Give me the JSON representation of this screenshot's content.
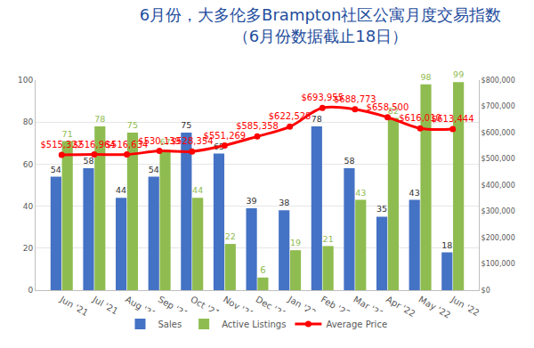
{
  "chart_data": {
    "type": "bar",
    "title": "6月份，大多伦多Brampton社区公寓月度交易指数",
    "subtitle": "（6月份数据截止18日）",
    "categories": [
      "Jun '21",
      "Jul '21",
      "Aug '21",
      "Sep '21",
      "Oct '21",
      "Nov '21",
      "Dec '21",
      "Jan '22",
      "Feb '22",
      "Mar '22",
      "Apr '22",
      "May '22",
      "Jun '22"
    ],
    "series": [
      {
        "name": "Sales",
        "type": "bar",
        "color": "#4472c4",
        "values": [
          54,
          58,
          44,
          54,
          75,
          65,
          39,
          38,
          78,
          58,
          35,
          43,
          18
        ]
      },
      {
        "name": "Active Listings",
        "type": "bar",
        "color": "#8fbc50",
        "values": [
          71,
          78,
          75,
          67,
          44,
          22,
          6,
          19,
          21,
          43,
          82,
          98,
          99
        ]
      },
      {
        "name": "Average Price",
        "type": "line",
        "axis": "y2",
        "color": "#ff0000",
        "marker": "circle",
        "values": [
          515322,
          516964,
          516634,
          530139,
          528354,
          551269,
          585358,
          622528,
          693955,
          688773,
          658500,
          616010,
          613444
        ],
        "value_labels": [
          "$515,322",
          "$516,964",
          "$516,634",
          "$530,139",
          "$528,354",
          "$551,269",
          "$585,358",
          "$622,528",
          "$693,955",
          "$688,773",
          "$658,500",
          "$616,010",
          "$613,444"
        ]
      }
    ],
    "ylim": [
      0,
      100
    ],
    "yticks": [
      0,
      20,
      40,
      60,
      80,
      100
    ],
    "y2lim": [
      0,
      800000
    ],
    "y2ticks": [
      {
        "value": 0,
        "label": "$0"
      },
      {
        "value": 100000,
        "label": "$100,000"
      },
      {
        "value": 200000,
        "label": "$200,000"
      },
      {
        "value": 300000,
        "label": "$300,000"
      },
      {
        "value": 400000,
        "label": "$400,000"
      },
      {
        "value": 500000,
        "label": "$500,000"
      },
      {
        "value": 600000,
        "label": "$600,000"
      },
      {
        "value": 700000,
        "label": "$700,000"
      },
      {
        "value": 800000,
        "label": "$800,000"
      }
    ],
    "grid": true,
    "legend": "bottom",
    "data_labels": true
  }
}
